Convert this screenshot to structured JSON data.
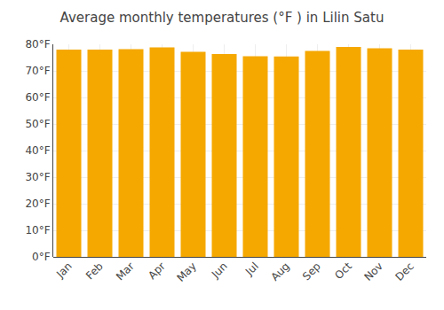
{
  "chart_data": {
    "type": "bar",
    "title": "Average monthly temperatures (°F ) in Lilin Satu",
    "categories": [
      "Jan",
      "Feb",
      "Mar",
      "Apr",
      "May",
      "Jun",
      "Jul",
      "Aug",
      "Sep",
      "Oct",
      "Nov",
      "Dec"
    ],
    "values": [
      78.0,
      78.0,
      78.2,
      78.8,
      77.2,
      76.3,
      75.5,
      75.4,
      77.5,
      79.0,
      78.5,
      78.0
    ],
    "color": "#F5A800",
    "ylim": [
      0,
      80
    ],
    "yticks": [
      {
        "value": 0,
        "label": "0°F"
      },
      {
        "value": 10,
        "label": "10°F"
      },
      {
        "value": 20,
        "label": "20°F"
      },
      {
        "value": 30,
        "label": "30°F"
      },
      {
        "value": 40,
        "label": "40°F"
      },
      {
        "value": 50,
        "label": "50°F"
      },
      {
        "value": 60,
        "label": "60°F"
      },
      {
        "value": 70,
        "label": "70°F"
      },
      {
        "value": 80,
        "label": "80°F"
      }
    ],
    "grid": true
  }
}
